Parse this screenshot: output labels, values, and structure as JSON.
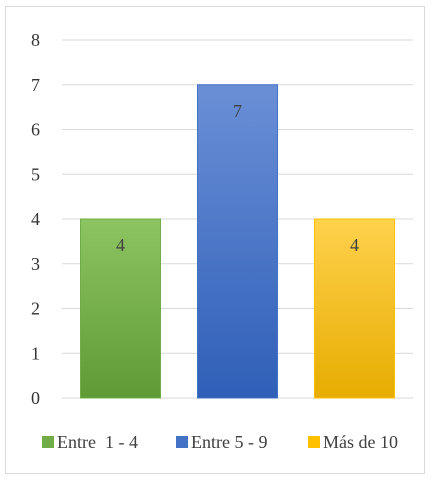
{
  "chart_data": {
    "type": "bar",
    "categories": [
      "Entre  1 - 4",
      "Entre 5 - 9",
      "Más de 10"
    ],
    "values": [
      4,
      7,
      4
    ],
    "colors": [
      "#70ad47",
      "#4472c4",
      "#ffc000"
    ],
    "gradient_top_colors": [
      "#8cc462",
      "#6a8fd6",
      "#ffd24d"
    ],
    "gradient_bottom_colors": [
      "#5f9a35",
      "#2f5fb8",
      "#e6ac00"
    ],
    "title": "",
    "xlabel": "",
    "ylabel": "",
    "ylim": [
      0,
      8
    ],
    "y_ticks": [
      "0",
      "1",
      "2",
      "3",
      "4",
      "5",
      "6",
      "7",
      "8"
    ],
    "data_labels": [
      "4",
      "7",
      "4"
    ],
    "grid": true,
    "legend_position": "bottom"
  }
}
